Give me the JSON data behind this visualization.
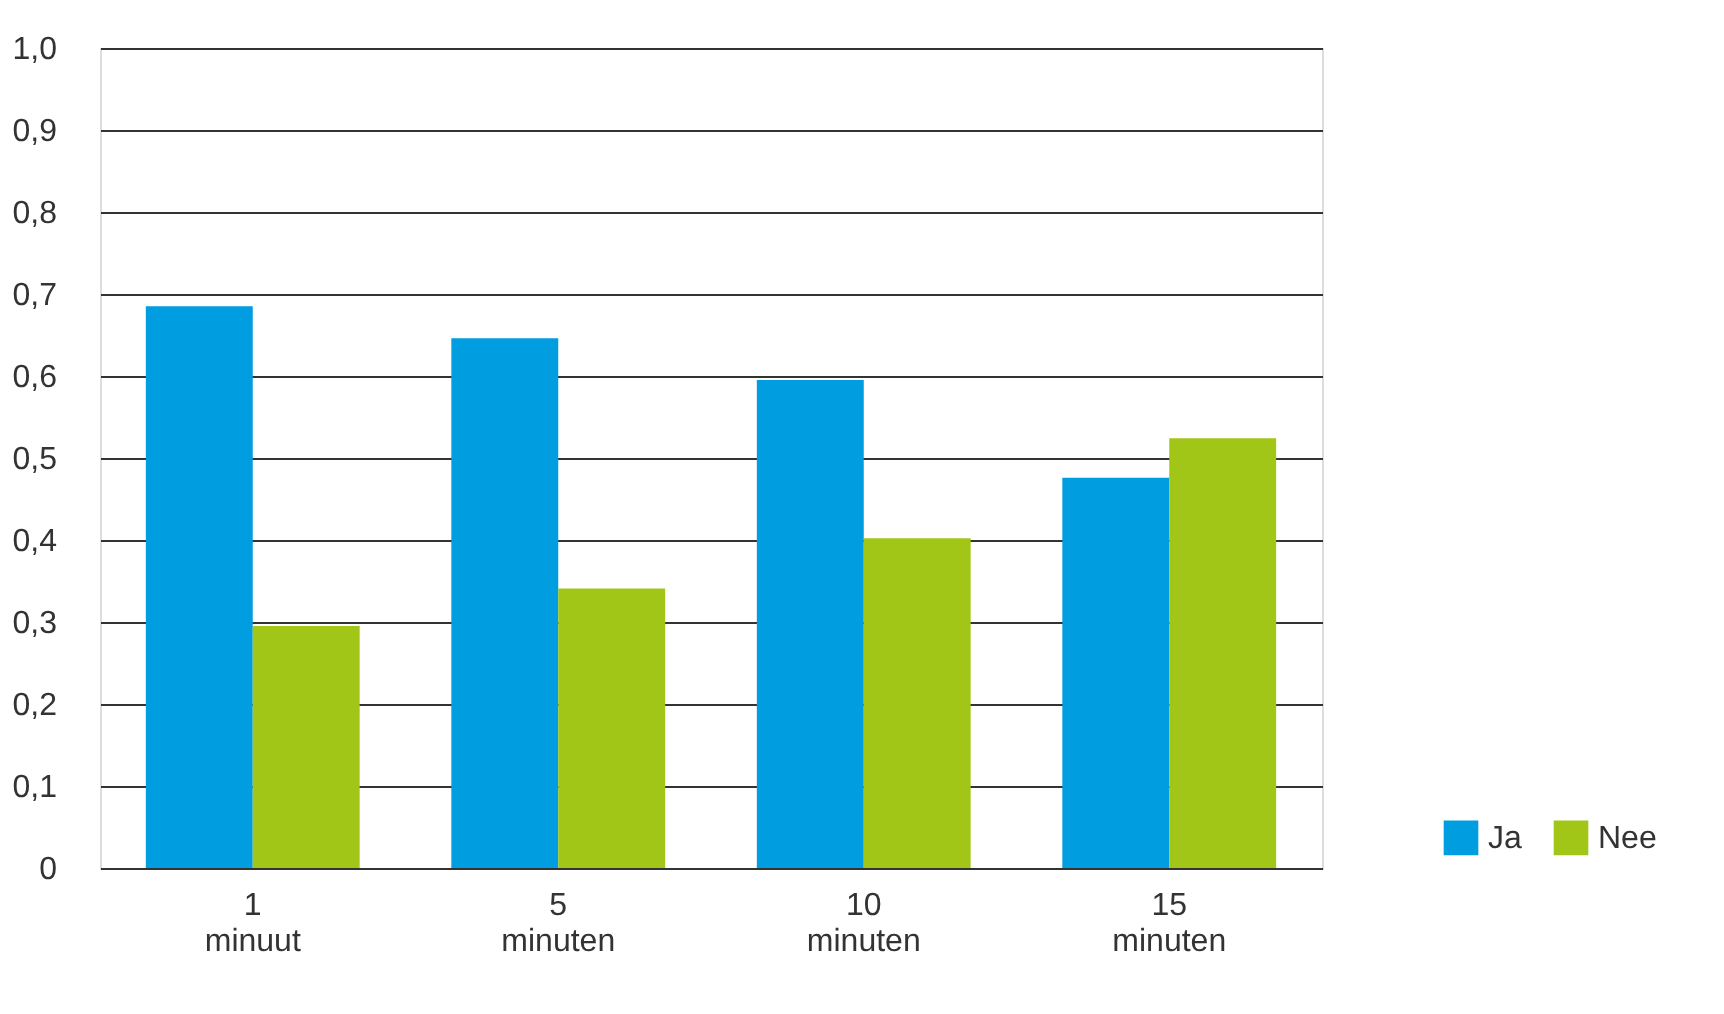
{
  "chart_data": {
    "type": "bar",
    "categories": [
      "1 minuut",
      "5 minuten",
      "10 minuten",
      "15 minuten"
    ],
    "series": [
      {
        "name": "Ja",
        "color": "#009ee0",
        "values": [
          0.685,
          0.646,
          0.595,
          0.476
        ]
      },
      {
        "name": "Nee",
        "color": "#a2c617",
        "values": [
          0.295,
          0.341,
          0.402,
          0.524
        ]
      }
    ],
    "ylim": [
      0,
      1.0
    ],
    "yticks": [
      0,
      {
        "value": 0.1,
        "label": "0,1"
      },
      {
        "value": 0.2,
        "label": "0,2"
      },
      {
        "value": 0.3,
        "label": "0,3"
      },
      {
        "value": 0.4,
        "label": "0,4"
      },
      {
        "value": 0.5,
        "label": "0,5"
      },
      {
        "value": 0.6,
        "label": "0,6"
      },
      {
        "value": 0.7,
        "label": "0,7"
      },
      {
        "value": 0.8,
        "label": "0,8"
      },
      {
        "value": 0.9,
        "label": "0,9"
      },
      {
        "value": 1.0,
        "label": "1,0"
      }
    ],
    "grid": "y",
    "legend": "bottom right"
  }
}
